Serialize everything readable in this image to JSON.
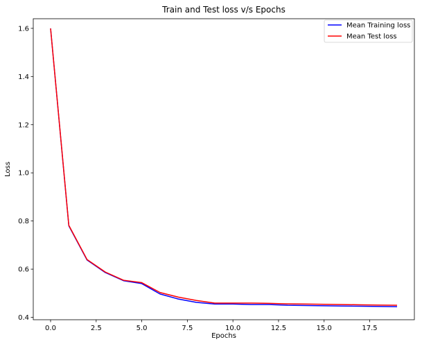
{
  "chart_data": {
    "type": "line",
    "title": "Train and Test loss v/s Epochs",
    "xlabel": "Epochs",
    "ylabel": "Loss",
    "xlim": [
      -0.95,
      19.95
    ],
    "ylim": [
      0.39,
      1.64
    ],
    "xticks": [
      0.0,
      2.5,
      5.0,
      7.5,
      10.0,
      12.5,
      15.0,
      17.5
    ],
    "xtick_labels": [
      "0.0",
      "2.5",
      "5.0",
      "7.5",
      "10.0",
      "12.5",
      "15.0",
      "17.5"
    ],
    "yticks": [
      0.4,
      0.6,
      0.8,
      1.0,
      1.2,
      1.4,
      1.6
    ],
    "ytick_labels": [
      "0.4",
      "0.6",
      "0.8",
      "1.0",
      "1.2",
      "1.4",
      "1.6"
    ],
    "grid": false,
    "legend_position": "top-right",
    "x": [
      0,
      1,
      2,
      3,
      4,
      5,
      6,
      7,
      8,
      9,
      10,
      11,
      12,
      13,
      14,
      15,
      16,
      17,
      18,
      19
    ],
    "series": [
      {
        "name": "Mean Training loss",
        "color": "#0000ff",
        "values": [
          1.6,
          0.78,
          0.638,
          0.586,
          0.552,
          0.54,
          0.497,
          0.476,
          0.462,
          0.455,
          0.455,
          0.453,
          0.453,
          0.45,
          0.449,
          0.448,
          0.447,
          0.446,
          0.445,
          0.444
        ]
      },
      {
        "name": "Mean Test loss",
        "color": "#ff0000",
        "values": [
          1.6,
          0.782,
          0.64,
          0.588,
          0.554,
          0.544,
          0.503,
          0.484,
          0.47,
          0.459,
          0.459,
          0.459,
          0.458,
          0.456,
          0.455,
          0.454,
          0.453,
          0.452,
          0.451,
          0.45
        ]
      }
    ]
  }
}
